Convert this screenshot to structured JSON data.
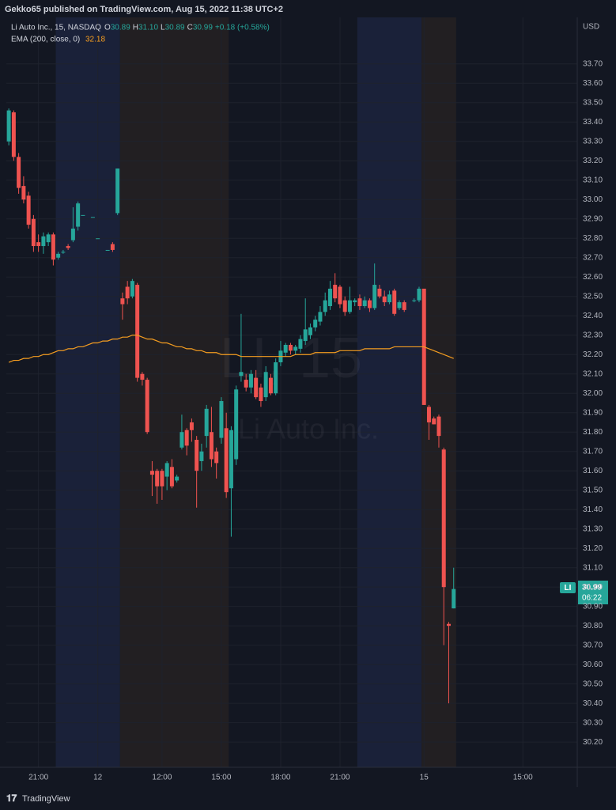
{
  "header": {
    "published": "Gekko65 published on TradingView.com, Aug 15, 2022 11:38 UTC+2",
    "brand": "TradingView"
  },
  "chart_data": {
    "type": "candlestick",
    "symbol_line": "Li Auto Inc., 15, NASDAQ",
    "legend_ohlc": [
      {
        "key": "O",
        "text": "30.89"
      },
      {
        "key": "H",
        "text": "31.10"
      },
      {
        "key": "L",
        "text": "30.89"
      },
      {
        "key": "C",
        "text": "30.99"
      }
    ],
    "change": "+0.18 (+0.58%)",
    "indicator_line": "EMA (200, close, 0)",
    "indicator_value": "32.18",
    "watermark": [
      "LI, 15",
      "Li Auto Inc."
    ],
    "currency": "USD",
    "price_tag": {
      "symbol": "LI",
      "price": "30.99",
      "countdown": "06:22"
    },
    "up_color": "#26a69a",
    "down_color": "#ef5350",
    "xlim": [
      -0.5,
      115
    ],
    "xticks": [
      {
        "value": 6,
        "label": "21:00"
      },
      {
        "value": 18,
        "label": "12"
      },
      {
        "value": 31,
        "label": "12:00"
      },
      {
        "value": 43,
        "label": "15:00"
      },
      {
        "value": 55,
        "label": "18:00"
      },
      {
        "value": 67,
        "label": "21:00"
      },
      {
        "value": 84,
        "label": "15"
      },
      {
        "value": 104,
        "label": "15:00"
      }
    ],
    "ylim": [
      30.07,
      33.94
    ],
    "yticks": [
      {
        "value": 30.2,
        "label": "30.20"
      },
      {
        "value": 30.3,
        "label": "30.30"
      },
      {
        "value": 30.4,
        "label": "30.40"
      },
      {
        "value": 30.5,
        "label": "30.50"
      },
      {
        "value": 30.6,
        "label": "30.60"
      },
      {
        "value": 30.7,
        "label": "30.70"
      },
      {
        "value": 30.8,
        "label": "30.80"
      },
      {
        "value": 30.9,
        "label": "30.90"
      },
      {
        "value": 31.0,
        "label": "31.00"
      },
      {
        "value": 31.1,
        "label": "31.10"
      },
      {
        "value": 31.2,
        "label": "31.20"
      },
      {
        "value": 31.3,
        "label": "31.30"
      },
      {
        "value": 31.4,
        "label": "31.40"
      },
      {
        "value": 31.5,
        "label": "31.50"
      },
      {
        "value": 31.6,
        "label": "31.60"
      },
      {
        "value": 31.7,
        "label": "31.70"
      },
      {
        "value": 31.8,
        "label": "31.80"
      },
      {
        "value": 31.9,
        "label": "31.90"
      },
      {
        "value": 32.0,
        "label": "32.00"
      },
      {
        "value": 32.1,
        "label": "32.10"
      },
      {
        "value": 32.2,
        "label": "32.20"
      },
      {
        "value": 32.3,
        "label": "32.30"
      },
      {
        "value": 32.4,
        "label": "32.40"
      },
      {
        "value": 32.5,
        "label": "32.50"
      },
      {
        "value": 32.6,
        "label": "32.60"
      },
      {
        "value": 32.7,
        "label": "32.70"
      },
      {
        "value": 32.8,
        "label": "32.80"
      },
      {
        "value": 32.9,
        "label": "32.90"
      },
      {
        "value": 33.0,
        "label": "33.00"
      },
      {
        "value": 33.1,
        "label": "33.10"
      },
      {
        "value": 33.2,
        "label": "33.20"
      },
      {
        "value": 33.3,
        "label": "33.30"
      },
      {
        "value": 33.4,
        "label": "33.40"
      },
      {
        "value": 33.5,
        "label": "33.50"
      },
      {
        "value": 33.6,
        "label": "33.60"
      },
      {
        "value": 33.7,
        "label": "33.70"
      }
    ],
    "grid": true,
    "sessions": [
      {
        "start": 9.5,
        "end": 22.5,
        "color": "#1a2139"
      },
      {
        "start": 22.5,
        "end": 44.5,
        "color": "#221f22"
      },
      {
        "start": 70.5,
        "end": 83.5,
        "color": "#1a2139"
      },
      {
        "start": 83.5,
        "end": 90.5,
        "color": "#221f22"
      }
    ],
    "series": [
      {
        "name": "LI",
        "open": [
          33.3,
          33.45,
          33.22,
          33.07,
          33.02,
          32.9,
          32.78,
          32.76,
          32.78,
          32.82,
          32.7,
          32.73,
          32.76,
          32.79,
          32.86,
          32.92,
          null,
          32.91,
          32.8,
          null,
          32.74,
          32.77,
          32.93,
          32.49,
          32.55,
          32.5,
          32.56,
          32.1,
          32.07,
          31.6,
          31.6,
          31.6,
          31.57,
          31.62,
          31.55,
          31.72,
          31.81,
          31.85,
          31.76,
          31.65,
          31.78,
          31.8,
          31.7,
          31.77,
          31.82,
          31.51,
          31.66,
          32.09,
          32.07,
          32.03,
          32.08,
          32.03,
          31.98,
          32.08,
          32.0,
          32.16,
          32.21,
          32.25,
          32.22,
          32.23,
          32.27,
          32.3,
          32.34,
          32.37,
          32.42,
          32.45,
          32.56,
          32.55,
          32.48,
          32.42,
          32.47,
          32.49,
          32.45,
          32.48,
          32.44,
          32.54,
          32.5,
          32.47,
          32.53,
          32.44,
          32.47,
          null,
          32.48,
          32.48,
          32.54,
          31.93,
          31.87,
          31.88,
          31.71,
          30.81,
          30.89
        ],
        "high": [
          33.47,
          33.46,
          33.24,
          33.12,
          33.04,
          32.92,
          32.82,
          32.83,
          32.83,
          32.83,
          32.73,
          32.74,
          32.77,
          32.96,
          32.99,
          32.92,
          null,
          32.91,
          32.8,
          null,
          32.74,
          32.78,
          33.16,
          32.52,
          32.58,
          32.59,
          32.57,
          32.11,
          32.08,
          31.65,
          31.61,
          31.61,
          31.65,
          31.66,
          31.58,
          31.89,
          31.82,
          31.87,
          31.78,
          31.74,
          31.94,
          31.93,
          31.72,
          31.98,
          31.9,
          31.83,
          32.04,
          32.41,
          32.1,
          32.12,
          32.12,
          32.05,
          32.14,
          32.1,
          32.18,
          32.27,
          32.26,
          32.26,
          32.25,
          32.3,
          32.49,
          32.36,
          32.4,
          32.45,
          32.52,
          32.58,
          32.62,
          32.56,
          32.5,
          32.55,
          32.49,
          32.51,
          32.5,
          32.49,
          32.67,
          32.56,
          32.53,
          32.53,
          32.54,
          32.48,
          32.48,
          null,
          32.49,
          32.55,
          32.54,
          31.94,
          31.88,
          31.89,
          31.72,
          30.82,
          31.1
        ],
        "low": [
          33.28,
          33.2,
          33.03,
          32.98,
          32.85,
          32.73,
          32.73,
          32.72,
          32.76,
          32.66,
          32.69,
          32.72,
          32.74,
          32.78,
          32.84,
          32.92,
          null,
          32.91,
          32.8,
          null,
          32.74,
          32.73,
          32.92,
          32.38,
          32.46,
          32.49,
          32.06,
          32.04,
          31.79,
          31.47,
          31.43,
          31.45,
          31.5,
          31.51,
          31.54,
          31.71,
          31.68,
          31.75,
          31.41,
          31.6,
          31.72,
          31.62,
          31.56,
          31.74,
          31.46,
          31.26,
          31.63,
          32.06,
          32.01,
          32.0,
          31.97,
          31.93,
          31.96,
          31.99,
          31.99,
          32.14,
          32.19,
          32.2,
          32.2,
          32.21,
          32.25,
          32.28,
          32.32,
          32.35,
          32.4,
          32.43,
          32.47,
          32.44,
          32.4,
          32.41,
          32.45,
          32.43,
          32.44,
          32.42,
          32.43,
          32.49,
          32.45,
          32.46,
          32.4,
          32.43,
          32.42,
          null,
          32.47,
          32.47,
          31.94,
          31.76,
          31.84,
          31.72,
          30.7,
          30.4,
          30.89
        ],
        "close": [
          33.46,
          33.22,
          33.06,
          33.0,
          32.87,
          32.76,
          32.76,
          32.81,
          32.82,
          32.69,
          32.72,
          32.73,
          32.75,
          32.85,
          32.98,
          32.92,
          null,
          32.91,
          32.8,
          null,
          32.74,
          32.74,
          33.16,
          32.46,
          32.49,
          32.58,
          32.08,
          32.07,
          31.8,
          31.58,
          31.52,
          31.52,
          31.64,
          31.52,
          31.57,
          31.8,
          31.73,
          31.81,
          31.6,
          31.7,
          31.92,
          31.66,
          31.64,
          31.96,
          31.49,
          31.81,
          32.02,
          32.11,
          32.03,
          32.1,
          31.98,
          31.96,
          32.11,
          32.0,
          32.16,
          32.22,
          32.25,
          32.22,
          32.24,
          32.28,
          32.33,
          32.34,
          32.38,
          32.42,
          32.48,
          32.54,
          32.49,
          32.46,
          32.42,
          32.48,
          32.48,
          32.45,
          32.48,
          32.44,
          32.56,
          32.5,
          32.47,
          32.51,
          32.41,
          32.47,
          32.43,
          null,
          32.48,
          32.54,
          31.94,
          31.85,
          31.84,
          31.78,
          31.0,
          30.8,
          30.99
        ]
      },
      {
        "name": "EMA (200, close, 0)",
        "color": "#f59d20",
        "values": [
          32.16,
          32.17,
          32.17,
          32.18,
          32.18,
          32.19,
          32.19,
          32.2,
          32.2,
          32.21,
          32.22,
          32.22,
          32.23,
          32.23,
          32.24,
          32.24,
          32.25,
          32.26,
          32.26,
          32.27,
          32.27,
          32.28,
          32.28,
          32.29,
          32.29,
          32.3,
          32.3,
          32.29,
          32.28,
          32.28,
          32.27,
          32.26,
          32.26,
          32.25,
          32.24,
          32.24,
          32.23,
          32.23,
          32.22,
          32.22,
          32.21,
          32.21,
          32.21,
          32.2,
          32.2,
          32.2,
          32.2,
          32.19,
          32.19,
          32.19,
          32.19,
          32.19,
          32.19,
          32.19,
          32.19,
          32.19,
          32.19,
          32.19,
          32.2,
          32.2,
          32.2,
          32.2,
          32.21,
          32.21,
          32.21,
          32.21,
          32.21,
          32.22,
          32.22,
          32.22,
          32.22,
          32.22,
          32.23,
          32.23,
          32.23,
          32.23,
          32.23,
          32.23,
          32.24,
          32.24,
          32.24,
          32.24,
          32.24,
          32.24,
          32.24,
          32.23,
          32.22,
          32.21,
          32.2,
          32.19,
          32.18
        ]
      }
    ]
  }
}
